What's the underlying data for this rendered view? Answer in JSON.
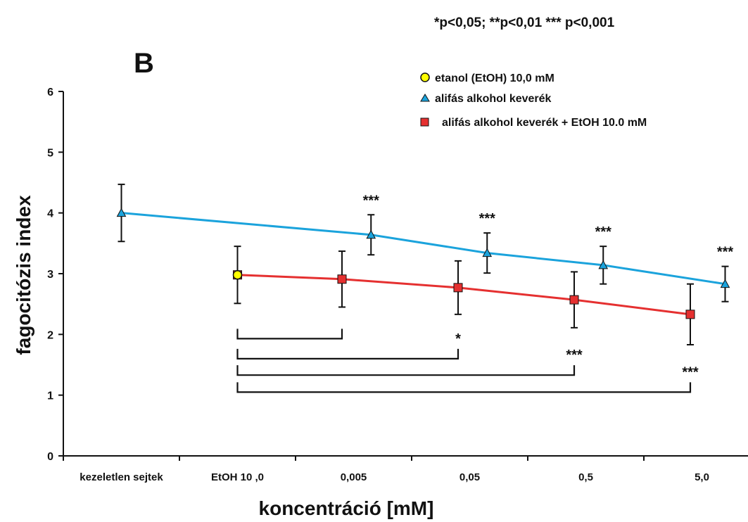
{
  "pvalue_note": "*p<0,05; **p<0,01 *** p<0,001",
  "panel_letter": "B",
  "colors": {
    "ethanol": "#ffff00",
    "aliphatic": "#1ba3dc",
    "aliphatic_etoh": "#e53030"
  },
  "chart_data": {
    "type": "line",
    "title": "",
    "xlabel": "koncentráció [mM]",
    "ylabel": "fagocitózis index",
    "ylim": [
      0,
      6
    ],
    "yticks": [
      0,
      1,
      2,
      3,
      4,
      5,
      6
    ],
    "categories": [
      "kezeletlen sejtek",
      "EtOH 10 ,0",
      "0,005",
      "0,05",
      "0,5",
      "5,0"
    ],
    "grid": false,
    "legend_position": "top-right",
    "series": [
      {
        "name": "etanol (EtOH) 10,0 mM",
        "marker": "circle",
        "points": [
          {
            "x": 1,
            "y": 2.98,
            "err": 0.47
          }
        ]
      },
      {
        "name": "alifás alkohol keverék",
        "marker": "triangle",
        "points": [
          {
            "x": 0,
            "y": 4.0,
            "err": 0.47,
            "sig": ""
          },
          {
            "x": 2.15,
            "y": 3.64,
            "err": 0.33,
            "sig": "***"
          },
          {
            "x": 3.15,
            "y": 3.34,
            "err": 0.33,
            "sig": "***"
          },
          {
            "x": 4.15,
            "y": 3.14,
            "err": 0.31,
            "sig": "***"
          },
          {
            "x": 5.2,
            "y": 2.83,
            "err": 0.29,
            "sig": "***"
          }
        ]
      },
      {
        "name": "alifás alkohol keverék + EtOH 10.0 mM",
        "marker": "square",
        "points": [
          {
            "x": 1,
            "y": 2.98,
            "err": 0.0
          },
          {
            "x": 1.9,
            "y": 2.91,
            "err": 0.46
          },
          {
            "x": 2.9,
            "y": 2.77,
            "err": 0.44
          },
          {
            "x": 3.9,
            "y": 2.57,
            "err": 0.46
          },
          {
            "x": 4.9,
            "y": 2.33,
            "err": 0.5
          }
        ]
      }
    ],
    "comparisons": [
      {
        "from": 1,
        "to": 1.9,
        "y": 1.93,
        "label": ""
      },
      {
        "from": 1,
        "to": 2.9,
        "y": 1.6,
        "label": "*"
      },
      {
        "from": 1,
        "to": 3.9,
        "y": 1.33,
        "label": "***"
      },
      {
        "from": 1,
        "to": 4.9,
        "y": 1.05,
        "label": "***"
      }
    ]
  }
}
